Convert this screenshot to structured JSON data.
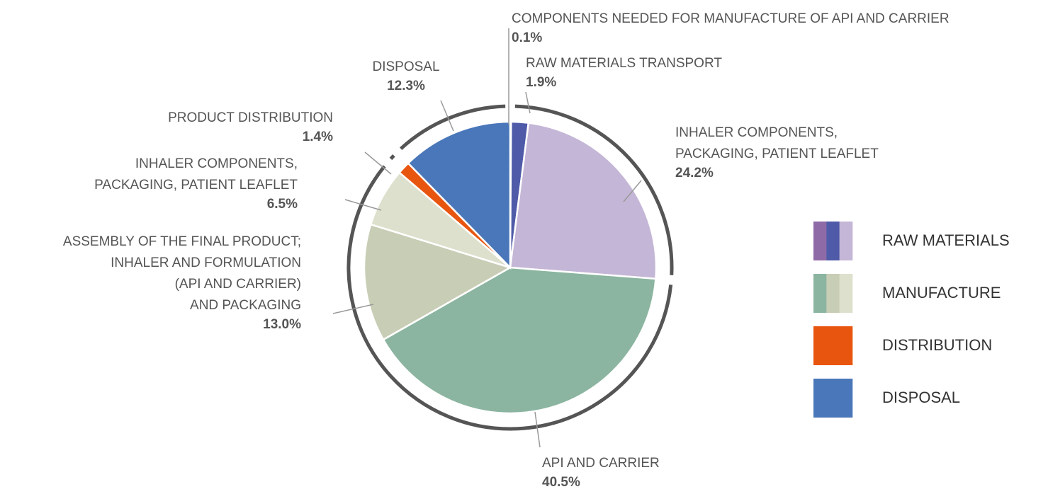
{
  "chart_data": {
    "type": "pie",
    "labels": [
      [
        "COMPONENTS NEEDED FOR MANUFACTURE OF API AND CARRIER"
      ],
      [
        "RAW MATERIALS TRANSPORT"
      ],
      [
        "INHALER COMPONENTS,",
        "PACKAGING, PATIENT LEAFLET"
      ],
      [
        "API AND CARRIER"
      ],
      [
        "ASSEMBLY OF THE FINAL PRODUCT;",
        "INHALER AND FORMULATION",
        "(API AND CARRIER)",
        "AND PACKAGING"
      ],
      [
        "INHALER COMPONENTS,",
        "PACKAGING, PATIENT LEAFLET"
      ],
      [
        "PRODUCT DISTRIBUTION"
      ],
      [
        "DISPOSAL"
      ]
    ],
    "values": [
      0.1,
      1.9,
      24.2,
      40.5,
      13.0,
      6.5,
      1.4,
      12.3
    ],
    "value_labels": [
      "0.1%",
      "1.9%",
      "24.2%",
      "40.5%",
      "13.0%",
      "6.5%",
      "1.4%",
      "12.3%"
    ],
    "colors": [
      "#8e6aa6",
      "#4f5ba8",
      "#c4b6d6",
      "#8bb5a0",
      "#c8cdb5",
      "#dde0cc",
      "#e8550f",
      "#4a77b9"
    ],
    "legend": [
      {
        "name": "RAW MATERIALS",
        "colors": [
          "#8e6aa6",
          "#4f5ba8",
          "#c4b6d6"
        ]
      },
      {
        "name": "MANUFACTURE",
        "colors": [
          "#8bb5a0",
          "#c8cdb5",
          "#dde0cc"
        ]
      },
      {
        "name": "DISTRIBUTION",
        "colors": [
          "#e8550f"
        ]
      },
      {
        "name": "DISPOSAL",
        "colors": [
          "#4a77b9"
        ]
      }
    ]
  }
}
